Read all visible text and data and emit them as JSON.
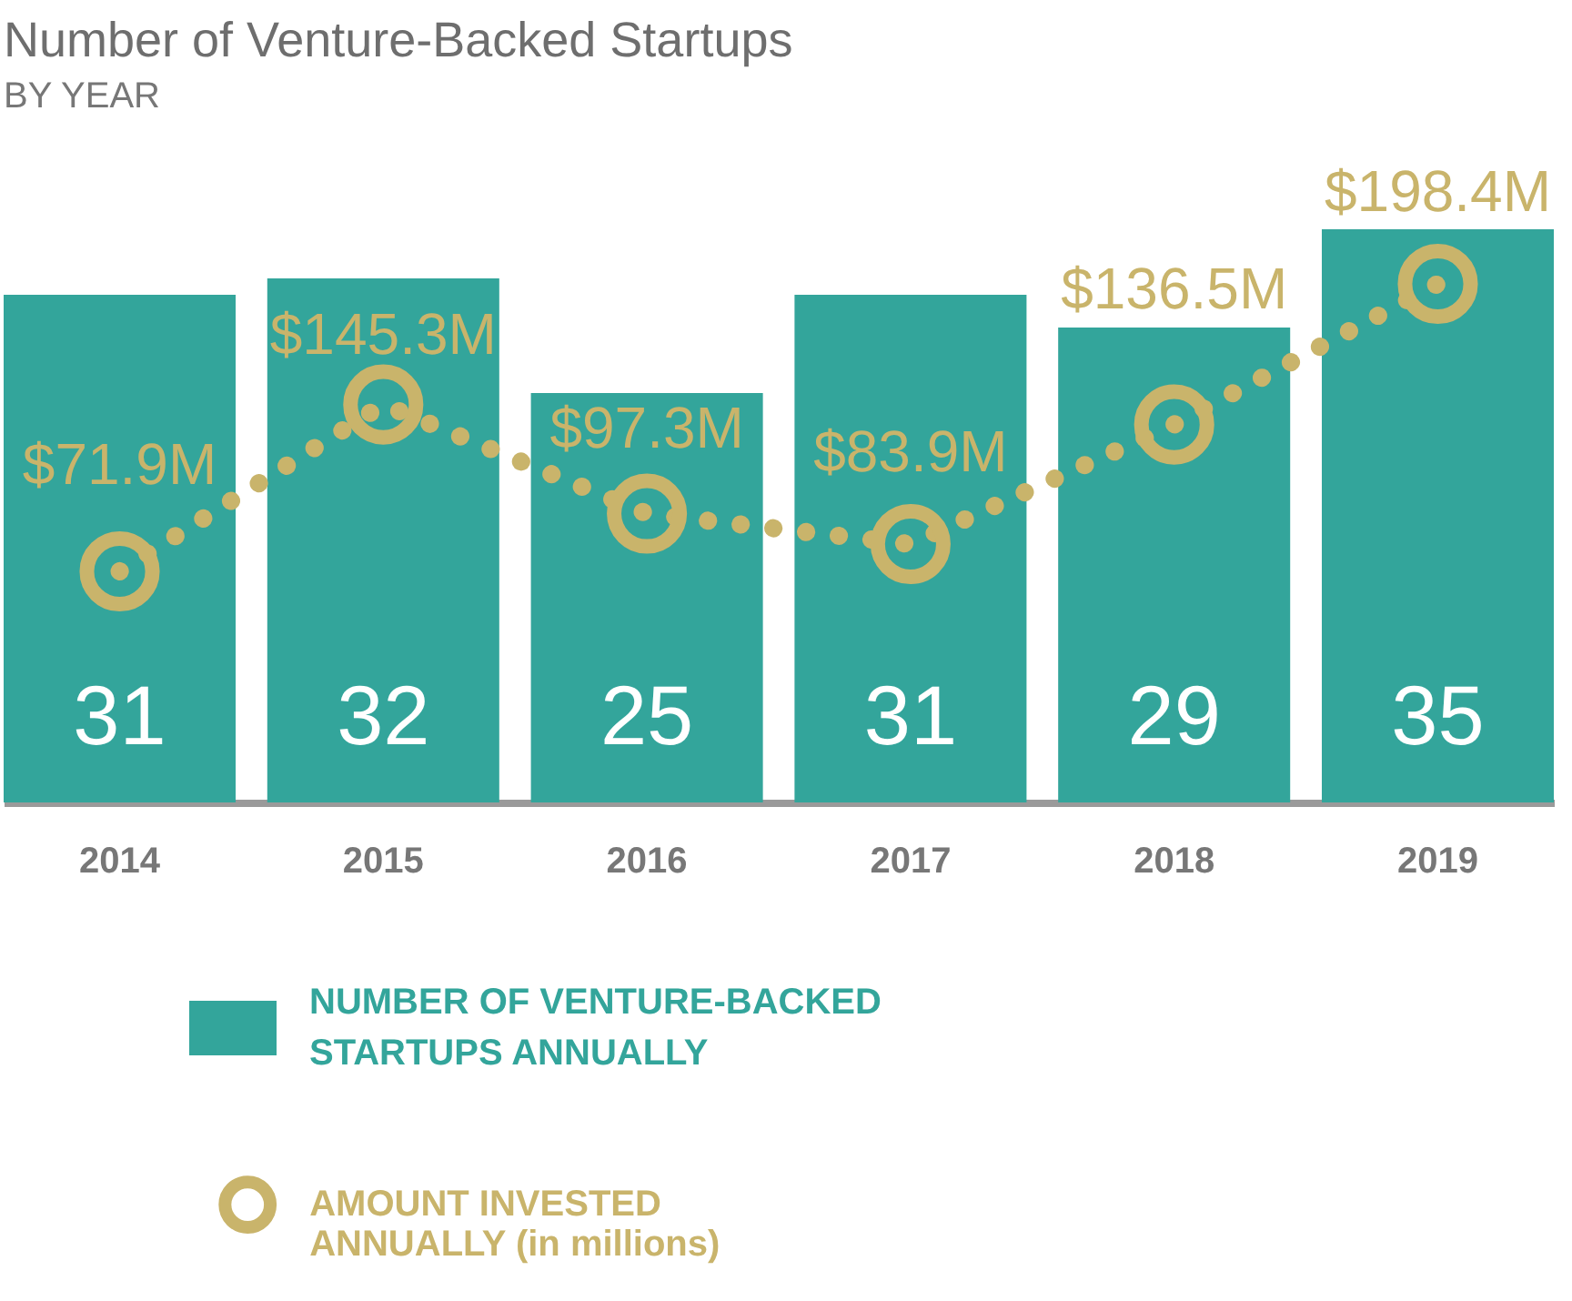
{
  "chart_data": {
    "type": "bar",
    "title": "Number of Venture-Backed Startups",
    "subtitle": "BY YEAR",
    "categories": [
      "2014",
      "2015",
      "2016",
      "2017",
      "2018",
      "2019"
    ],
    "series": [
      {
        "name": "NUMBER OF VENTURE-BACKED STARTUPS ANNUALLY",
        "color": "#33a59b",
        "values": [
          31,
          32,
          25,
          31,
          29,
          35
        ]
      },
      {
        "name": "AMOUNT INVESTED ANNUALLY (in millions)",
        "type": "line",
        "axis": "y2",
        "color": "#c9b46b",
        "values": [
          71.9,
          145.3,
          97.3,
          83.9,
          136.5,
          198.4
        ],
        "value_labels": [
          "$71.9M",
          "$145.3M",
          "$97.3M",
          "$83.9M",
          "$136.5M",
          "$198.4M"
        ]
      }
    ],
    "data_labels": true,
    "tick_labels": "x",
    "marker": "circle",
    "line_style": "dotted",
    "legend": "bottom left"
  }
}
